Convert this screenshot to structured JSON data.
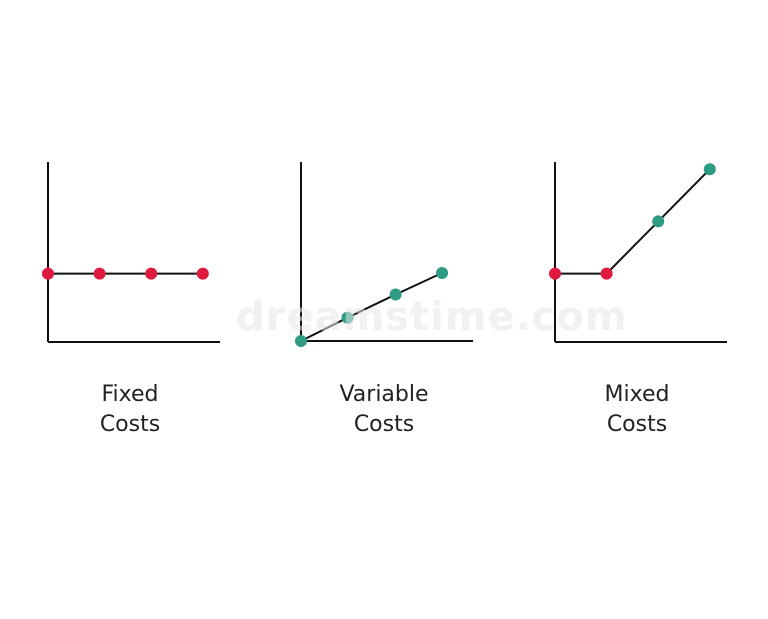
{
  "watermark": "dreamstime.com",
  "colors": {
    "axis": "#111111",
    "fixed_marker": "#e0193f",
    "variable_marker": "#2e9b85"
  },
  "chart_data": [
    {
      "type": "line",
      "xlabel": "",
      "ylabel": "",
      "caption": [
        "Fixed",
        "Costs"
      ],
      "xlim": [
        0,
        100
      ],
      "ylim": [
        0,
        100
      ],
      "grid": false,
      "series": [
        {
          "x": [
            0,
            30,
            60,
            90
          ],
          "y": [
            38,
            38,
            38,
            38
          ],
          "marker_colors": [
            "#e0193f",
            "#e0193f",
            "#e0193f",
            "#e0193f"
          ]
        }
      ]
    },
    {
      "type": "line",
      "xlabel": "",
      "ylabel": "",
      "caption": [
        "Variable",
        "Costs"
      ],
      "xlim": [
        0,
        100
      ],
      "ylim": [
        0,
        100
      ],
      "grid": false,
      "series": [
        {
          "x": [
            0,
            27,
            55,
            82
          ],
          "y": [
            0,
            13,
            26,
            38
          ],
          "marker_colors": [
            "#2e9b85",
            "#2e9b85",
            "#2e9b85",
            "#2e9b85"
          ]
        }
      ]
    },
    {
      "type": "line",
      "xlabel": "",
      "ylabel": "",
      "caption": [
        "Mixed",
        "Costs"
      ],
      "xlim": [
        0,
        100
      ],
      "ylim": [
        0,
        100
      ],
      "grid": false,
      "series": [
        {
          "x": [
            0,
            30,
            60,
            90
          ],
          "y": [
            38,
            38,
            67,
            96
          ],
          "marker_colors": [
            "#e0193f",
            "#e0193f",
            "#2e9b85",
            "#2e9b85"
          ]
        }
      ]
    }
  ]
}
